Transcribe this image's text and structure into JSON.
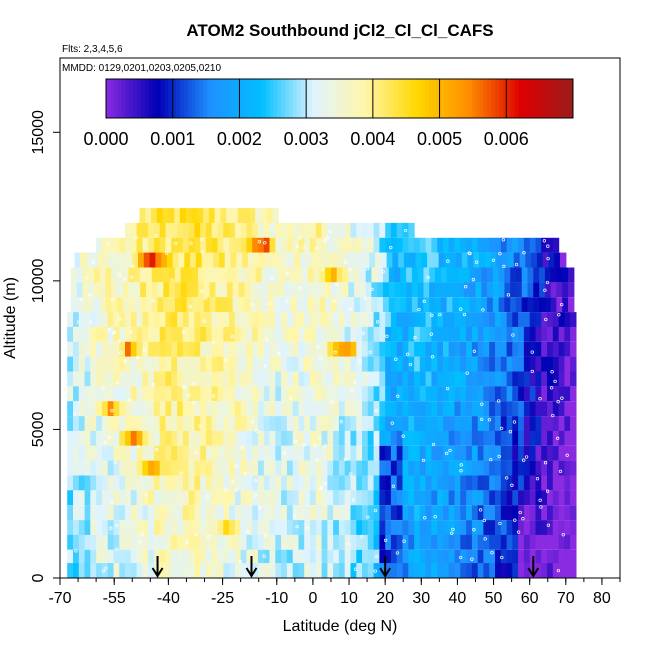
{
  "chart_data": {
    "type": "heatmap",
    "title": "ATOM2 Southbound jCl2_Cl_Cl_CAFS",
    "subtitle_flights": "Flts: 2,3,4,5,6",
    "subtitle_dates": "MMDD: 0129,0201,0203,0205,0210",
    "xlabel": "Latitude (deg N)",
    "ylabel": "Altitude (m)",
    "xlim": [
      -70,
      85
    ],
    "ylim": [
      0,
      17500
    ],
    "x_ticks": [
      -70,
      -55,
      -40,
      -25,
      -10,
      0,
      10,
      20,
      30,
      40,
      50,
      60,
      70,
      80
    ],
    "x_tick_labels": [
      "-70",
      "-55",
      "-40",
      "-25",
      "-10",
      "0",
      "10",
      "20",
      "30",
      "40",
      "50",
      "60",
      "70",
      "80"
    ],
    "y_ticks": [
      0,
      5000,
      10000,
      15000
    ],
    "y_tick_labels": [
      "0",
      "5000",
      "10000",
      "15000"
    ],
    "colorbar": {
      "min": 0.0,
      "max": 0.007,
      "ticks": [
        0.0,
        0.001,
        0.002,
        0.003,
        0.004,
        0.005,
        0.006
      ],
      "tick_labels": [
        "0.000",
        "0.001",
        "0.002",
        "0.003",
        "0.004",
        "0.005",
        "0.006"
      ],
      "colors": [
        "#8a2be2",
        "#0000b4",
        "#1e90ff",
        "#00bfff",
        "#e0f4ff",
        "#fff6a8",
        "#ffd700",
        "#ff8c00",
        "#dd0000",
        "#9b1c1c"
      ]
    },
    "arrows_latitude": [
      -43,
      -17,
      20,
      61
    ],
    "layer_ranges": [
      {
        "alt": 12200,
        "lat_start": -48,
        "lat_end": -10
      },
      {
        "alt": 11700,
        "lat_start": -52,
        "lat_end": 28
      },
      {
        "alt": 11200,
        "lat_start": -60,
        "lat_end": 68
      },
      {
        "alt": 10700,
        "lat_start": -66,
        "lat_end": 70
      },
      {
        "alt": 10200,
        "lat_start": -67,
        "lat_end": 71
      },
      {
        "alt": 9700,
        "lat_start": -67,
        "lat_end": 71
      },
      {
        "alt": 9200,
        "lat_start": -67,
        "lat_end": 71
      },
      {
        "alt": 8700,
        "lat_start": -68,
        "lat_end": 72
      },
      {
        "alt": 8200,
        "lat_start": -68,
        "lat_end": 72
      },
      {
        "alt": 7700,
        "lat_start": -68,
        "lat_end": 72
      },
      {
        "alt": 7200,
        "lat_start": -68,
        "lat_end": 72
      },
      {
        "alt": 6700,
        "lat_start": -68,
        "lat_end": 72
      },
      {
        "alt": 6200,
        "lat_start": -68,
        "lat_end": 72
      },
      {
        "alt": 5700,
        "lat_start": -68,
        "lat_end": 72
      },
      {
        "alt": 5200,
        "lat_start": -68,
        "lat_end": 72
      },
      {
        "alt": 4700,
        "lat_start": -68,
        "lat_end": 72
      },
      {
        "alt": 4200,
        "lat_start": -68,
        "lat_end": 72
      },
      {
        "alt": 3700,
        "lat_start": -68,
        "lat_end": 72
      },
      {
        "alt": 3200,
        "lat_start": -68,
        "lat_end": 72
      },
      {
        "alt": 2700,
        "lat_start": -68,
        "lat_end": 72
      },
      {
        "alt": 2200,
        "lat_start": -68,
        "lat_end": 72
      },
      {
        "alt": 1700,
        "lat_start": -68,
        "lat_end": 72
      },
      {
        "alt": 1200,
        "lat_start": -68,
        "lat_end": 72
      },
      {
        "alt": 700,
        "lat_start": -68,
        "lat_end": 72
      },
      {
        "alt": 250,
        "lat_start": -68,
        "lat_end": 72
      }
    ],
    "profile": [
      {
        "lat": -68,
        "value": 0.003
      },
      {
        "lat": -60,
        "value": 0.0034
      },
      {
        "lat": -50,
        "value": 0.0036
      },
      {
        "lat": -40,
        "value": 0.004
      },
      {
        "lat": -30,
        "value": 0.0039
      },
      {
        "lat": -20,
        "value": 0.0036
      },
      {
        "lat": -10,
        "value": 0.0033
      },
      {
        "lat": 0,
        "value": 0.0035
      },
      {
        "lat": 10,
        "value": 0.0031
      },
      {
        "lat": 17,
        "value": 0.0028
      },
      {
        "lat": 22,
        "value": 0.0018
      },
      {
        "lat": 28,
        "value": 0.0022
      },
      {
        "lat": 35,
        "value": 0.002
      },
      {
        "lat": 42,
        "value": 0.0018
      },
      {
        "lat": 48,
        "value": 0.0016
      },
      {
        "lat": 55,
        "value": 0.0012
      },
      {
        "lat": 60,
        "value": 0.0008
      },
      {
        "lat": 65,
        "value": 0.0003
      },
      {
        "lat": 72,
        "value": 0.0
      }
    ],
    "hotspots": [
      {
        "lat": -45,
        "alt": 10700,
        "value": 0.0063
      },
      {
        "lat": -15,
        "alt": 11200,
        "value": 0.006
      },
      {
        "lat": 5,
        "alt": 10200,
        "value": 0.0052
      },
      {
        "lat": 8,
        "alt": 7700,
        "value": 0.0058
      },
      {
        "lat": -52,
        "alt": 7700,
        "value": 0.0052
      },
      {
        "lat": -50,
        "alt": 4700,
        "value": 0.0055
      },
      {
        "lat": -45,
        "alt": 3700,
        "value": 0.0054
      },
      {
        "lat": -25,
        "alt": 1700,
        "value": 0.005
      },
      {
        "lat": -57,
        "alt": 5700,
        "value": 0.0052
      }
    ],
    "grid": false,
    "legend": "colorbar top"
  }
}
